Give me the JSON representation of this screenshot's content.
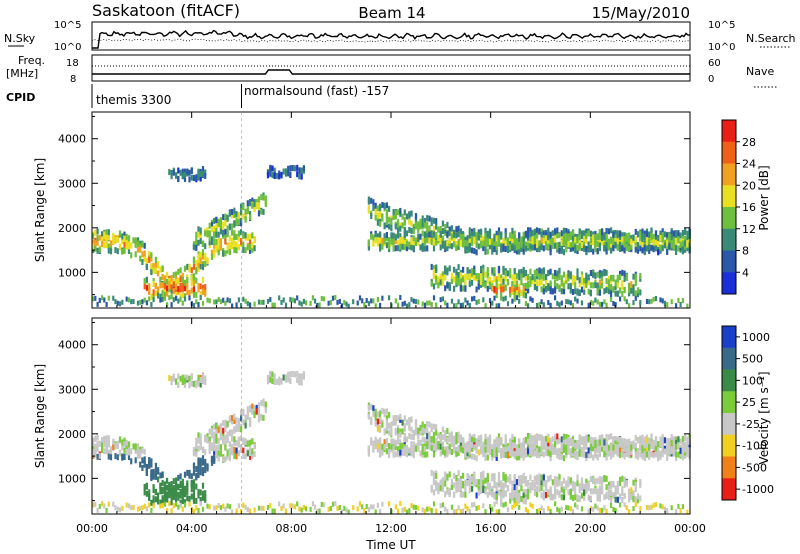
{
  "header": {
    "station": "Saskatoon (fitACF)",
    "beam": "Beam 14",
    "date": "15/May/2010"
  },
  "noise_panel": {
    "left_label": "N.Sky",
    "right_label": "N.Search",
    "left_ticks": [
      "10^5",
      "10^0"
    ],
    "right_ticks": [
      "10^5",
      "10^0"
    ]
  },
  "freq_panel": {
    "left_label_line1": "Freq.",
    "left_label_line2": "[MHz]",
    "right_label": "Nave",
    "left_ticks": [
      "18",
      "8"
    ],
    "right_ticks": [
      "60",
      "0"
    ]
  },
  "cpid": {
    "label": "CPID",
    "segments": [
      {
        "name": "themis 3300",
        "start_hour": 0
      },
      {
        "name": "normalsound (fast) -157",
        "start_hour": 6
      }
    ]
  },
  "time_axis": {
    "label": "Time UT",
    "ticks": [
      "00:00",
      "04:00",
      "08:00",
      "12:00",
      "16:00",
      "20:00",
      "00:00"
    ]
  },
  "chart_data": [
    {
      "type": "heatmap",
      "name": "power",
      "ylabel": "Slant Range [km]",
      "yticks": [
        "1000",
        "2000",
        "3000",
        "4000"
      ],
      "xlim_hours": [
        0,
        24
      ],
      "ylim_km": [
        200,
        4600
      ],
      "colorbar": {
        "label": "Power [dB]",
        "tick_labels": [
          "4",
          "8",
          "12",
          "16",
          "20",
          "24",
          "28"
        ],
        "colors": [
          "#1a2fd8",
          "#2b58a8",
          "#3a8a78",
          "#6fbf3f",
          "#e8e020",
          "#f2a020",
          "#f06018",
          "#e82018"
        ]
      }
    },
    {
      "type": "heatmap",
      "name": "velocity",
      "ylabel": "Slant Range [km]",
      "yticks": [
        "1000",
        "2000",
        "3000",
        "4000"
      ],
      "xlim_hours": [
        0,
        24
      ],
      "ylim_km": [
        200,
        4600
      ],
      "colorbar": {
        "label": "Velocity [m s⁻¹]",
        "tick_labels": [
          "1000",
          "500",
          "100",
          "25",
          "-25",
          "-100",
          "-500",
          "-1000"
        ],
        "colors": [
          "#1a3fc8",
          "#3a6a8a",
          "#3a8a48",
          "#7acc3a",
          "#c8c8c8",
          "#f2d020",
          "#f08018",
          "#e82018"
        ]
      }
    }
  ]
}
